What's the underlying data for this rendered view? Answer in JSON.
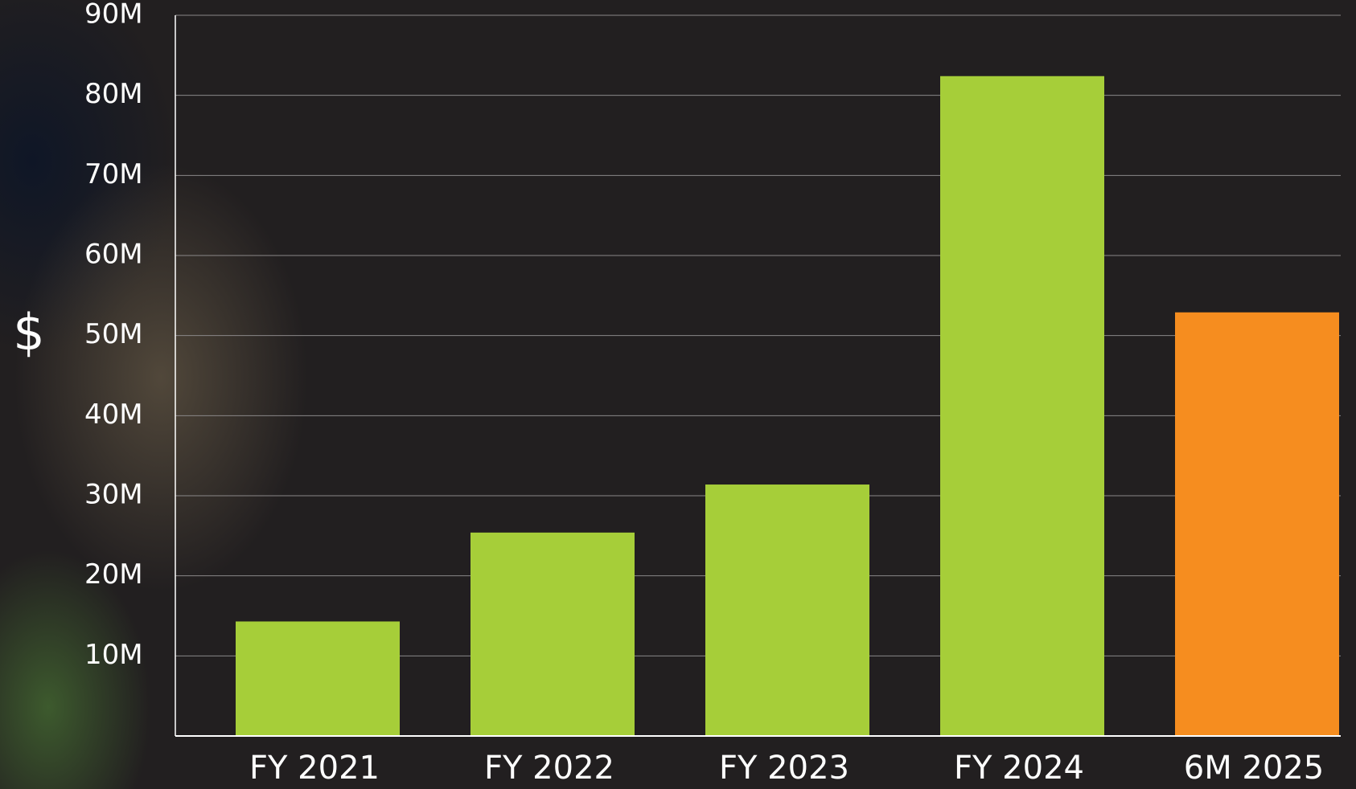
{
  "chart_data": {
    "type": "bar",
    "y_label": "$",
    "categories": [
      "FY 2021",
      "FY 2022",
      "FY 2023",
      "FY 2024",
      "6M 2025"
    ],
    "values": [
      14300000,
      25400000,
      31400000,
      82400000,
      52900000
    ],
    "colors": [
      "#a6ce39",
      "#a6ce39",
      "#a6ce39",
      "#a6ce39",
      "#f68d1f"
    ],
    "ylim": [
      0,
      90000000
    ],
    "yticks": [
      {
        "value": 10000000,
        "label": "10M"
      },
      {
        "value": 20000000,
        "label": "20M"
      },
      {
        "value": 30000000,
        "label": "30M"
      },
      {
        "value": 40000000,
        "label": "40M"
      },
      {
        "value": 50000000,
        "label": "50M"
      },
      {
        "value": 60000000,
        "label": "60M"
      },
      {
        "value": 70000000,
        "label": "70M"
      },
      {
        "value": 80000000,
        "label": "80M"
      },
      {
        "value": 90000000,
        "label": "90M"
      }
    ],
    "grid": true
  }
}
